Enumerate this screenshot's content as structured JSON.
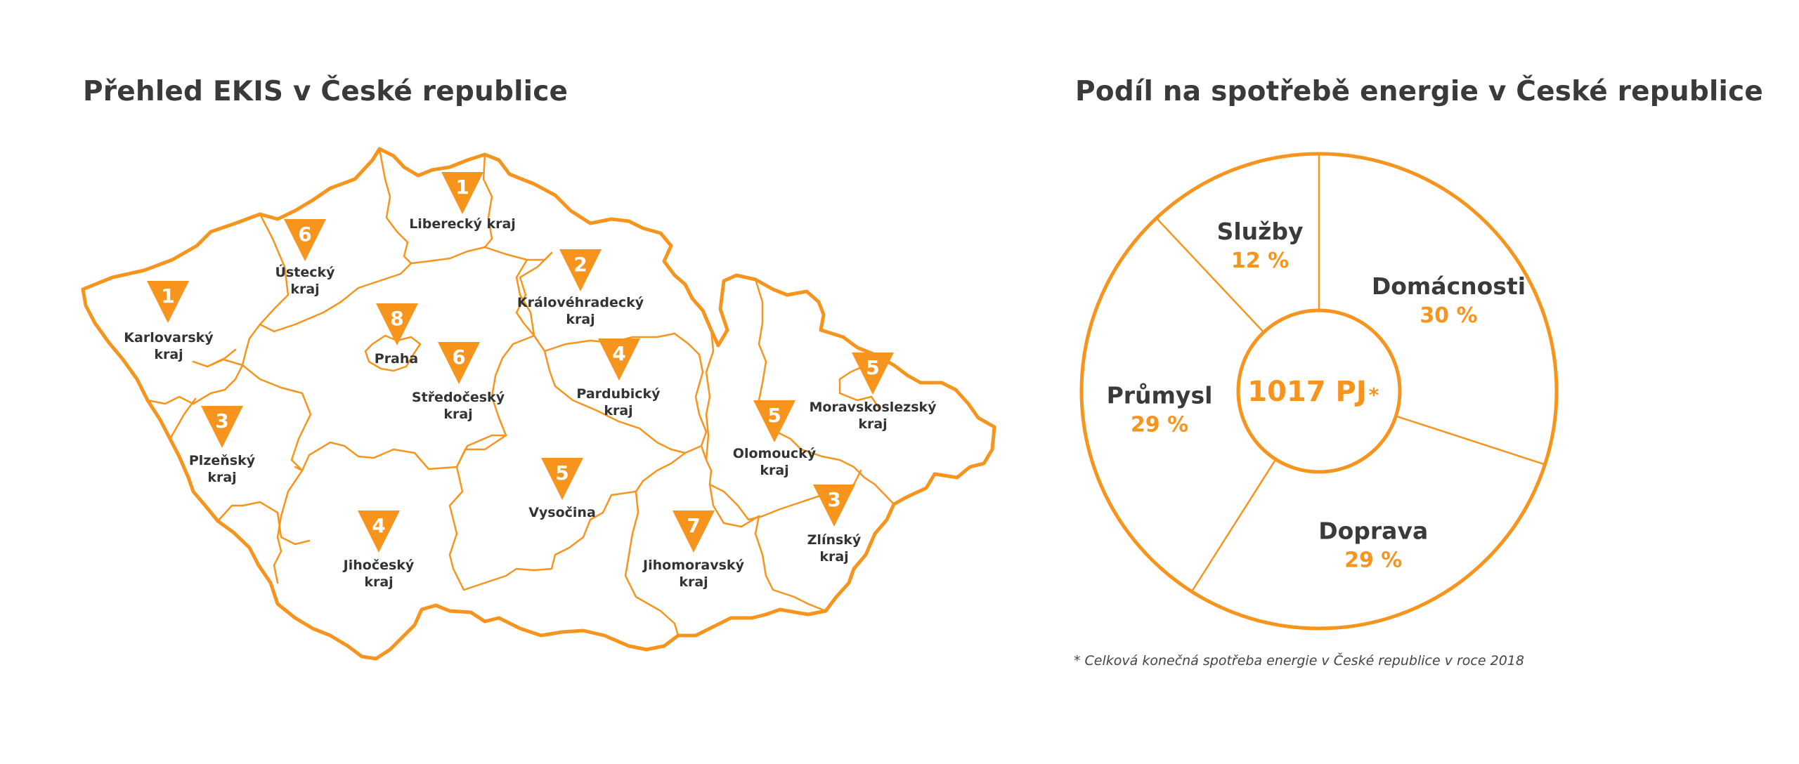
{
  "map_title": "Přehled EKIS v České republice",
  "chart_title": "Podíl na spotřebě energie v České republice",
  "colors": {
    "accent": "#f7941d",
    "text": "#333333",
    "background": "#ffffff"
  },
  "regions": [
    {
      "name_lines": [
        "Liberecký kraj"
      ],
      "count": "1"
    },
    {
      "name_lines": [
        "Ústecký",
        "kraj"
      ],
      "count": "6"
    },
    {
      "name_lines": [
        "Karlovarský",
        "kraj"
      ],
      "count": "1"
    },
    {
      "name_lines": [
        "Královéhradecký",
        "kraj"
      ],
      "count": "2"
    },
    {
      "name_lines": [
        "Praha"
      ],
      "count": "8"
    },
    {
      "name_lines": [
        "Středočeský",
        "kraj"
      ],
      "count": "6"
    },
    {
      "name_lines": [
        "Pardubický",
        "kraj"
      ],
      "count": "4"
    },
    {
      "name_lines": [
        "Plzeňský",
        "kraj"
      ],
      "count": "3"
    },
    {
      "name_lines": [
        "Vysočina"
      ],
      "count": "5"
    },
    {
      "name_lines": [
        "Jihočeský",
        "kraj"
      ],
      "count": "4"
    },
    {
      "name_lines": [
        "Jihomoravský",
        "kraj"
      ],
      "count": "7"
    },
    {
      "name_lines": [
        "Olomoucký",
        "kraj"
      ],
      "count": "5"
    },
    {
      "name_lines": [
        "Moravskoslezský",
        "kraj"
      ],
      "count": "5"
    },
    {
      "name_lines": [
        "Zlínský",
        "kraj"
      ],
      "count": "3"
    }
  ],
  "chart_data": {
    "type": "pie",
    "title": "Podíl na spotřebě energie v České republice",
    "center_label": "1017 PJ",
    "center_marker": "*",
    "unit": "%",
    "slices": [
      {
        "name": "Domácnosti",
        "value": 30,
        "label": "30 %"
      },
      {
        "name": "Doprava",
        "value": 29,
        "label": "29 %"
      },
      {
        "name": "Průmysl",
        "value": 29,
        "label": "29 %"
      },
      {
        "name": "Služby",
        "value": 12,
        "label": "12 %"
      }
    ]
  },
  "footnote": "* Celková konečná spotřeba energie v České republice v roce 2018"
}
